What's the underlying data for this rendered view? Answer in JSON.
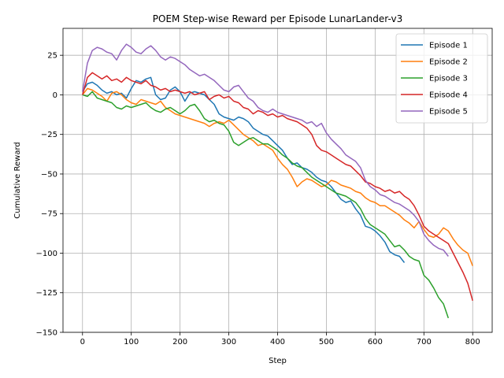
{
  "chart_data": {
    "type": "line",
    "title": "POEM Step-wise Reward per Episode LunarLander-v3",
    "xlabel": "Step",
    "ylabel": "Cumulative Reward",
    "xlim": [
      -40,
      840
    ],
    "ylim": [
      -150,
      42
    ],
    "xticks": [
      0,
      100,
      200,
      300,
      400,
      500,
      600,
      700,
      800
    ],
    "yticks": [
      -150,
      -125,
      -100,
      -75,
      -50,
      -25,
      0,
      25
    ],
    "grid": true,
    "legend_position": "top-right",
    "series": [
      {
        "name": "Episode 1",
        "color": "#1f77b4",
        "x": [
          0,
          10,
          20,
          30,
          40,
          50,
          60,
          70,
          80,
          90,
          100,
          110,
          120,
          130,
          140,
          150,
          160,
          170,
          180,
          190,
          200,
          210,
          220,
          230,
          240,
          250,
          260,
          270,
          280,
          290,
          300,
          310,
          320,
          330,
          340,
          350,
          360,
          370,
          380,
          390,
          400,
          410,
          420,
          430,
          440,
          450,
          460,
          470,
          480,
          490,
          500,
          510,
          520,
          530,
          540,
          550,
          560,
          570,
          580,
          590,
          600,
          610,
          620,
          630,
          640,
          650,
          660
        ],
        "values": [
          2,
          7,
          8,
          6,
          3,
          1,
          2,
          0,
          1,
          -2,
          4,
          9,
          8,
          10,
          11,
          0,
          -3,
          -2,
          3,
          5,
          2,
          -4,
          1,
          2,
          1,
          0,
          -3,
          -6,
          -12,
          -14,
          -15,
          -16,
          -14,
          -15,
          -17,
          -21,
          -23,
          -25,
          -26,
          -29,
          -32,
          -35,
          -40,
          -44,
          -43,
          -46,
          -47,
          -49,
          -52,
          -54,
          -55,
          -58,
          -62,
          -66,
          -68,
          -67,
          -72,
          -76,
          -83,
          -84,
          -86,
          -89,
          -93,
          -99,
          -101,
          -102,
          -106
        ]
      },
      {
        "name": "Episode 2",
        "color": "#ff7f0e",
        "x": [
          0,
          10,
          20,
          30,
          40,
          50,
          60,
          70,
          80,
          90,
          100,
          110,
          120,
          130,
          140,
          150,
          160,
          170,
          180,
          190,
          200,
          210,
          220,
          230,
          240,
          250,
          260,
          270,
          280,
          290,
          300,
          310,
          320,
          330,
          340,
          350,
          360,
          370,
          380,
          390,
          400,
          410,
          420,
          430,
          440,
          450,
          460,
          470,
          480,
          490,
          500,
          510,
          520,
          530,
          540,
          550,
          560,
          570,
          580,
          590,
          600,
          610,
          620,
          630,
          640,
          650,
          660,
          670,
          680,
          690,
          700,
          710,
          720,
          730,
          740,
          750,
          760,
          770,
          780,
          790,
          800
        ],
        "values": [
          0,
          4,
          3,
          1,
          -1,
          -4,
          1,
          2,
          0,
          -3,
          -5,
          -6,
          -3,
          -4,
          -5,
          -6,
          -4,
          -8,
          -10,
          -12,
          -13,
          -14,
          -15,
          -16,
          -17,
          -18,
          -20,
          -18,
          -17,
          -18,
          -16,
          -19,
          -22,
          -25,
          -27,
          -29,
          -32,
          -31,
          -33,
          -35,
          -40,
          -44,
          -47,
          -52,
          -58,
          -55,
          -53,
          -54,
          -56,
          -58,
          -57,
          -54,
          -55,
          -57,
          -58,
          -59,
          -61,
          -62,
          -65,
          -67,
          -68,
          -70,
          -70,
          -72,
          -74,
          -76,
          -79,
          -81,
          -84,
          -80,
          -85,
          -89,
          -90,
          -88,
          -84,
          -86,
          -91,
          -95,
          -98,
          -100,
          -108
        ]
      },
      {
        "name": "Episode 3",
        "color": "#2ca02c",
        "x": [
          0,
          10,
          20,
          30,
          40,
          50,
          60,
          70,
          80,
          90,
          100,
          110,
          120,
          130,
          140,
          150,
          160,
          170,
          180,
          190,
          200,
          210,
          220,
          230,
          240,
          250,
          260,
          270,
          280,
          290,
          300,
          310,
          320,
          330,
          340,
          350,
          360,
          370,
          380,
          390,
          400,
          410,
          420,
          430,
          440,
          450,
          460,
          470,
          480,
          490,
          500,
          510,
          520,
          530,
          540,
          550,
          560,
          570,
          580,
          590,
          600,
          610,
          620,
          630,
          640,
          650,
          660,
          670,
          680,
          690,
          700,
          710,
          720,
          730,
          740,
          750
        ],
        "values": [
          0,
          -1,
          2,
          -2,
          -3,
          -4,
          -5,
          -8,
          -9,
          -7,
          -8,
          -7,
          -6,
          -5,
          -8,
          -10,
          -11,
          -9,
          -8,
          -10,
          -12,
          -10,
          -7,
          -6,
          -10,
          -15,
          -17,
          -16,
          -18,
          -19,
          -23,
          -30,
          -32,
          -30,
          -28,
          -27,
          -29,
          -31,
          -31,
          -33,
          -35,
          -38,
          -40,
          -43,
          -45,
          -46,
          -49,
          -52,
          -54,
          -56,
          -58,
          -60,
          -62,
          -63,
          -64,
          -66,
          -68,
          -72,
          -78,
          -82,
          -84,
          -86,
          -88,
          -92,
          -96,
          -95,
          -98,
          -102,
          -104,
          -105,
          -114,
          -117,
          -122,
          -128,
          -132,
          -141
        ]
      },
      {
        "name": "Episode 4",
        "color": "#d62728",
        "x": [
          0,
          10,
          20,
          30,
          40,
          50,
          60,
          70,
          80,
          90,
          100,
          110,
          120,
          130,
          140,
          150,
          160,
          170,
          180,
          190,
          200,
          210,
          220,
          230,
          240,
          250,
          260,
          270,
          280,
          290,
          300,
          310,
          320,
          330,
          340,
          350,
          360,
          370,
          380,
          390,
          400,
          410,
          420,
          430,
          440,
          450,
          460,
          470,
          480,
          490,
          500,
          510,
          520,
          530,
          540,
          550,
          560,
          570,
          580,
          590,
          600,
          610,
          620,
          630,
          640,
          650,
          660,
          670,
          680,
          690,
          700,
          710,
          720,
          730,
          740,
          750,
          760,
          770,
          780,
          790,
          800
        ],
        "values": [
          0,
          11,
          14,
          12,
          10,
          12,
          9,
          10,
          8,
          11,
          9,
          8,
          7,
          9,
          6,
          5,
          3,
          4,
          2,
          3,
          2,
          1,
          2,
          0,
          1,
          2,
          -3,
          -1,
          0,
          -2,
          -1,
          -4,
          -5,
          -8,
          -9,
          -12,
          -10,
          -11,
          -13,
          -12,
          -14,
          -13,
          -15,
          -16,
          -17,
          -19,
          -21,
          -25,
          -32,
          -35,
          -36,
          -38,
          -40,
          -42,
          -44,
          -45,
          -48,
          -51,
          -55,
          -56,
          -58,
          -59,
          -61,
          -60,
          -62,
          -61,
          -64,
          -66,
          -70,
          -76,
          -83,
          -86,
          -88,
          -90,
          -92,
          -94,
          -100,
          -106,
          -112,
          -119,
          -130
        ]
      },
      {
        "name": "Episode 5",
        "color": "#9467bd",
        "x": [
          0,
          10,
          20,
          30,
          40,
          50,
          60,
          70,
          80,
          90,
          100,
          110,
          120,
          130,
          140,
          150,
          160,
          170,
          180,
          190,
          200,
          210,
          220,
          230,
          240,
          250,
          260,
          270,
          280,
          290,
          300,
          310,
          320,
          330,
          340,
          350,
          360,
          370,
          380,
          390,
          400,
          410,
          420,
          430,
          440,
          450,
          460,
          470,
          480,
          490,
          500,
          510,
          520,
          530,
          540,
          550,
          560,
          570,
          580,
          590,
          600,
          610,
          620,
          630,
          640,
          650,
          660,
          670,
          680,
          690,
          700,
          710,
          720,
          730,
          740,
          750
        ],
        "values": [
          2,
          20,
          28,
          30,
          29,
          27,
          26,
          22,
          28,
          32,
          30,
          27,
          26,
          29,
          31,
          28,
          24,
          22,
          24,
          23,
          21,
          19,
          16,
          14,
          12,
          13,
          11,
          9,
          6,
          3,
          2,
          5,
          6,
          2,
          -2,
          -4,
          -8,
          -10,
          -11,
          -9,
          -11,
          -12,
          -13,
          -14,
          -15,
          -16,
          -18,
          -17,
          -20,
          -18,
          -24,
          -28,
          -31,
          -34,
          -38,
          -40,
          -42,
          -46,
          -54,
          -58,
          -60,
          -63,
          -64,
          -66,
          -68,
          -69,
          -71,
          -73,
          -76,
          -80,
          -88,
          -92,
          -95,
          -97,
          -98,
          -102
        ]
      }
    ]
  }
}
